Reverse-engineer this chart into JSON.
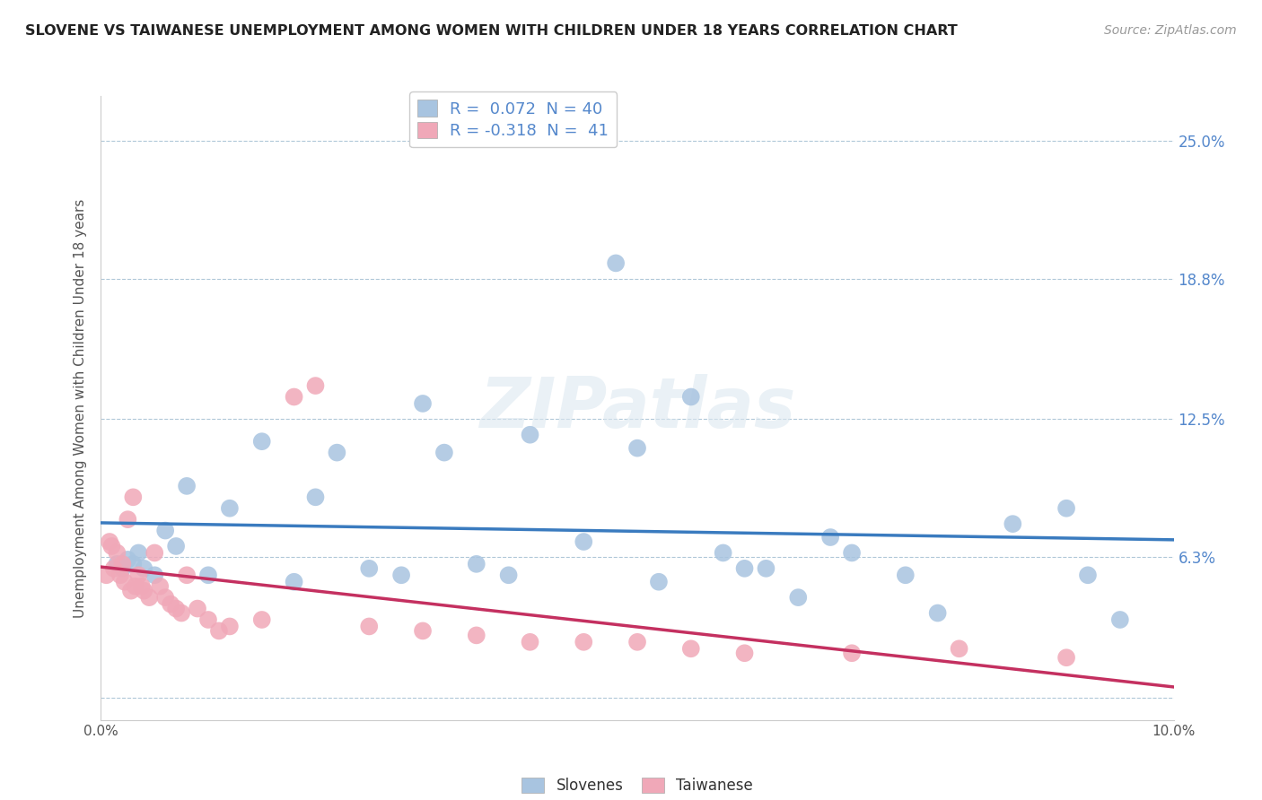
{
  "title": "SLOVENE VS TAIWANESE UNEMPLOYMENT AMONG WOMEN WITH CHILDREN UNDER 18 YEARS CORRELATION CHART",
  "source": "Source: ZipAtlas.com",
  "ylabel": "Unemployment Among Women with Children Under 18 years",
  "xlim": [
    0,
    10.0
  ],
  "ylim": [
    -1.0,
    27.0
  ],
  "ytick_positions": [
    0,
    6.3,
    12.5,
    18.8,
    25.0
  ],
  "ytick_labels": [
    "",
    "6.3%",
    "12.5%",
    "18.8%",
    "25.0%"
  ],
  "slovene_R": 0.072,
  "slovene_N": 40,
  "taiwanese_R": -0.318,
  "taiwanese_N": 41,
  "slovene_color": "#a8c4e0",
  "taiwanese_color": "#f0a8b8",
  "slovene_line_color": "#3a7bbf",
  "taiwanese_line_color": "#c43060",
  "tick_label_color": "#5588cc",
  "background_color": "#ffffff",
  "grid_color": "#b0c8d8",
  "slovene_x": [
    0.15,
    0.2,
    0.25,
    0.3,
    0.35,
    0.4,
    0.5,
    0.6,
    0.7,
    0.8,
    1.0,
    1.2,
    1.5,
    1.8,
    2.0,
    2.2,
    2.5,
    2.8,
    3.0,
    3.2,
    3.5,
    3.8,
    4.0,
    4.5,
    4.8,
    5.0,
    5.2,
    5.5,
    5.8,
    6.0,
    6.2,
    6.5,
    6.8,
    7.0,
    7.5,
    7.8,
    8.5,
    9.0,
    9.2,
    9.5
  ],
  "slovene_y": [
    6.0,
    5.8,
    6.2,
    6.0,
    6.5,
    5.8,
    5.5,
    7.5,
    6.8,
    9.5,
    5.5,
    8.5,
    11.5,
    5.2,
    9.0,
    11.0,
    5.8,
    5.5,
    13.2,
    11.0,
    6.0,
    5.5,
    11.8,
    7.0,
    19.5,
    11.2,
    5.2,
    13.5,
    6.5,
    5.8,
    5.8,
    4.5,
    7.2,
    6.5,
    5.5,
    3.8,
    7.8,
    8.5,
    5.5,
    3.5
  ],
  "taiwanese_x": [
    0.05,
    0.08,
    0.1,
    0.12,
    0.15,
    0.18,
    0.2,
    0.22,
    0.25,
    0.28,
    0.3,
    0.32,
    0.35,
    0.38,
    0.4,
    0.45,
    0.5,
    0.55,
    0.6,
    0.65,
    0.7,
    0.75,
    0.8,
    0.9,
    1.0,
    1.1,
    1.2,
    1.5,
    1.8,
    2.0,
    2.5,
    3.0,
    3.5,
    4.0,
    4.5,
    5.0,
    5.5,
    6.0,
    7.0,
    8.0,
    9.0
  ],
  "taiwanese_y": [
    5.5,
    7.0,
    6.8,
    5.8,
    6.5,
    5.5,
    6.0,
    5.2,
    8.0,
    4.8,
    9.0,
    5.0,
    5.5,
    5.0,
    4.8,
    4.5,
    6.5,
    5.0,
    4.5,
    4.2,
    4.0,
    3.8,
    5.5,
    4.0,
    3.5,
    3.0,
    3.2,
    3.5,
    13.5,
    14.0,
    3.2,
    3.0,
    2.8,
    2.5,
    2.5,
    2.5,
    2.2,
    2.0,
    2.0,
    2.2,
    1.8
  ]
}
